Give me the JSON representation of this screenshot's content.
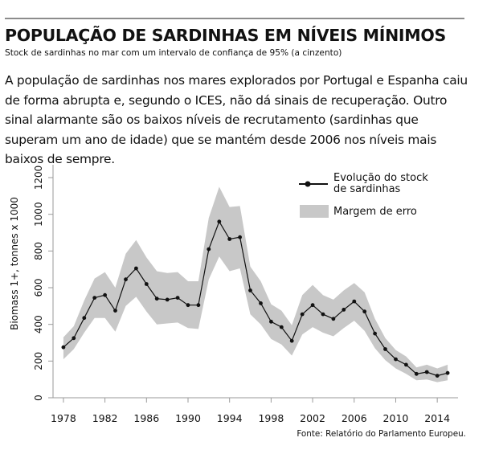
{
  "header": {
    "title": "POPULAÇÃO DE SARDINHAS EM NÍVEIS MÍNIMOS",
    "subtitle": "Stock de sardinhas no mar com um intervalo de confiança de 95% (a cinzento)"
  },
  "body": {
    "text": "A população de sardinhas nos mares explorados por Portugal e Espanha caiu de forma abrupta e, segundo o ICES, não dá sinais de recuperação. Outro sinal alarmante são os baixos níveis de recrutamento (sardinhas que superam um ano de idade) que se mantém desde 2006 nos níveis mais baixos de sempre."
  },
  "footer": {
    "source": "Fonte: Relatório do Parlamento Europeu."
  },
  "chart_data": {
    "type": "line",
    "title": "",
    "xlabel": "",
    "ylabel": "Biomass 1+, tonnes x 1000",
    "xlim": [
      1977,
      2016
    ],
    "ylim": [
      0,
      1250
    ],
    "x_ticks": [
      1978,
      1982,
      1986,
      1990,
      1994,
      1998,
      2002,
      2006,
      2010,
      2014
    ],
    "y_ticks": [
      0,
      200,
      400,
      600,
      800,
      1000,
      1200
    ],
    "legend_placement": "top-right",
    "legend": {
      "line_label": "Evolução do stock de sardinhas",
      "band_label": "Margem de erro"
    },
    "colors": {
      "line": "#111111",
      "band": "#c8c8c8",
      "axis": "#9a9a9a"
    },
    "series": [
      {
        "name": "Evolução do stock de sardinhas",
        "x": [
          1978,
          1979,
          1980,
          1981,
          1982,
          1983,
          1984,
          1985,
          1986,
          1987,
          1988,
          1989,
          1990,
          1991,
          1992,
          1993,
          1994,
          1995,
          1996,
          1997,
          1998,
          1999,
          2000,
          2001,
          2002,
          2003,
          2004,
          2005,
          2006,
          2007,
          2008,
          2009,
          2010,
          2011,
          2012,
          2013,
          2014,
          2015
        ],
        "values": [
          275,
          325,
          435,
          545,
          560,
          475,
          645,
          705,
          620,
          540,
          535,
          545,
          505,
          505,
          810,
          960,
          865,
          875,
          585,
          515,
          415,
          385,
          310,
          455,
          505,
          455,
          430,
          480,
          525,
          470,
          350,
          265,
          210,
          180,
          130,
          140,
          120,
          135
        ],
        "lower": [
          210,
          265,
          355,
          435,
          435,
          360,
          500,
          550,
          470,
          400,
          405,
          410,
          380,
          375,
          645,
          770,
          690,
          705,
          455,
          400,
          320,
          290,
          230,
          345,
          385,
          355,
          335,
          380,
          420,
          365,
          270,
          205,
          160,
          130,
          95,
          100,
          85,
          95
        ],
        "upper": [
          330,
          390,
          530,
          650,
          685,
          600,
          785,
          860,
          765,
          690,
          680,
          685,
          635,
          635,
          980,
          1150,
          1040,
          1045,
          715,
          635,
          510,
          475,
          395,
          560,
          615,
          560,
          535,
          585,
          625,
          575,
          430,
          325,
          260,
          225,
          165,
          180,
          160,
          180
        ]
      }
    ]
  }
}
